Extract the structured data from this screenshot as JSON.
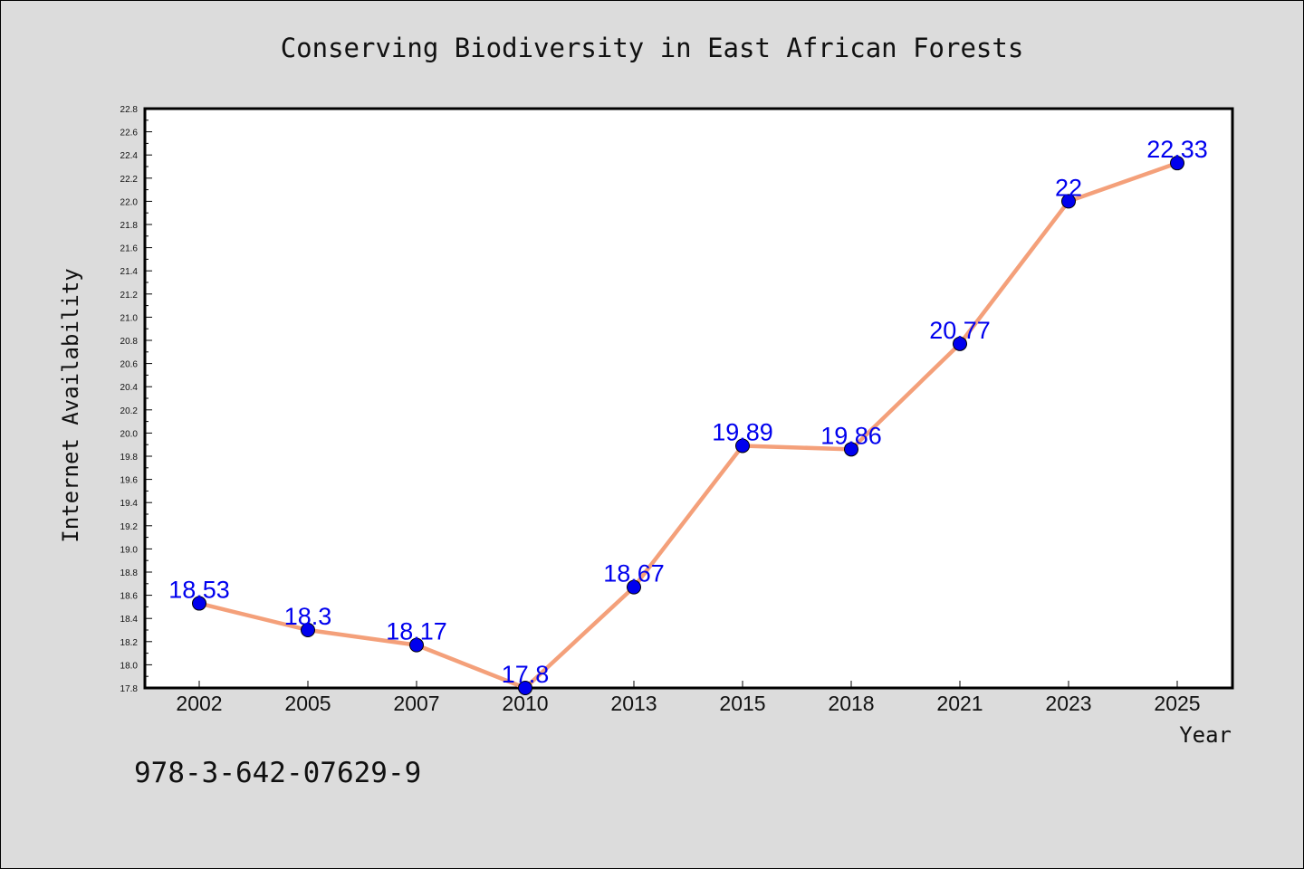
{
  "chart_data": {
    "type": "line",
    "title": "Conserving Biodiversity in East African Forests",
    "xlabel": "Year",
    "ylabel": "Internet Availability",
    "categories": [
      "2002",
      "2005",
      "2007",
      "2010",
      "2013",
      "2015",
      "2018",
      "2021",
      "2023",
      "2025"
    ],
    "series": [
      {
        "values": [
          18.53,
          18.3,
          18.17,
          17.8,
          18.67,
          19.89,
          19.86,
          20.77,
          22,
          22.33
        ],
        "labels": [
          "18.53",
          "18.3",
          "18.17",
          "17.8",
          "18.67",
          "19.89",
          "19.86",
          "20.77",
          "22",
          "22.33"
        ],
        "line_color": "#f4a07a",
        "marker_color": "#0000ee",
        "label_color": "#0000ee"
      }
    ],
    "ylim": [
      17.8,
      22.8
    ],
    "yticks": [
      "17.8",
      "18.0",
      "18.2",
      "18.4",
      "18.6",
      "18.8",
      "19.0",
      "19.2",
      "19.4",
      "19.6",
      "19.8",
      "20.0",
      "20.2",
      "20.4",
      "20.6",
      "20.8",
      "21.0",
      "21.2",
      "21.4",
      "21.6",
      "21.8",
      "22.0",
      "22.2",
      "22.4",
      "22.6",
      "22.8"
    ],
    "grid": false,
    "legend": "none"
  },
  "footer_text": "978-3-642-07629-9",
  "colors": {
    "background": "#dcdcdc",
    "plot_background": "#ffffff",
    "axis": "#000000"
  }
}
